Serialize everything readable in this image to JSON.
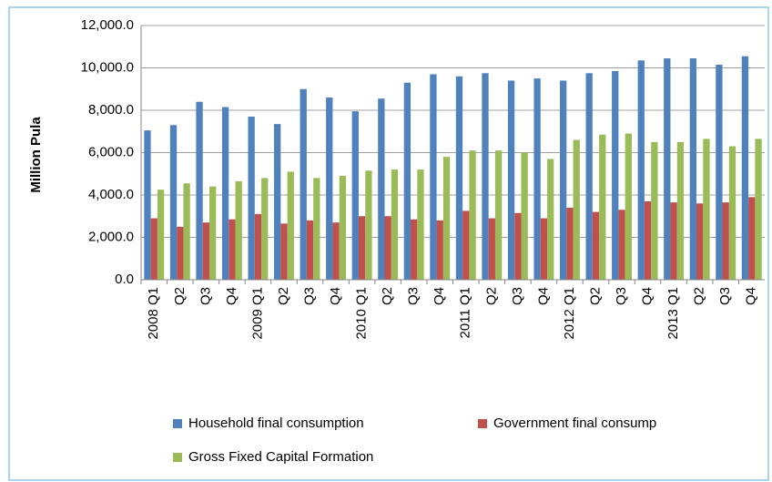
{
  "chart_data": {
    "type": "bar",
    "y_label": "Million Pula",
    "categories": [
      "2008 Q1",
      "Q2",
      "Q3",
      "Q4",
      "2009 Q1",
      "Q2",
      "Q3",
      "Q4",
      "2010 Q1",
      "Q2",
      "Q3",
      "Q4",
      "2011 Q1",
      "Q2",
      "Q3",
      "Q4",
      "2012 Q1",
      "Q2",
      "Q3",
      "Q4",
      "2013 Q1",
      "Q2",
      "Q3",
      "Q4"
    ],
    "series": [
      {
        "name": "Household final consumption",
        "color": "#4f81bd",
        "values": [
          7050,
          7300,
          8400,
          8150,
          7700,
          7350,
          9000,
          8600,
          7950,
          8550,
          9300,
          9700,
          9600,
          9750,
          9400,
          9500,
          9400,
          9750,
          9850,
          10350,
          10450,
          10450,
          10150,
          10550
        ]
      },
      {
        "name": "Government final consump",
        "color": "#c0504d",
        "values": [
          2900,
          2500,
          2700,
          2850,
          3100,
          2650,
          2800,
          2700,
          3000,
          3000,
          2850,
          2800,
          3250,
          2900,
          3150,
          2900,
          3400,
          3200,
          3300,
          3700,
          3650,
          3600,
          3650,
          3900
        ]
      },
      {
        "name": "Gross Fixed Capital Formation",
        "color": "#9bbb59",
        "values": [
          4250,
          4550,
          4400,
          4650,
          4800,
          5100,
          4800,
          4900,
          5150,
          5200,
          5200,
          5800,
          6100,
          6100,
          6000,
          5700,
          6600,
          6850,
          6900,
          6500,
          6500,
          6650,
          6300,
          6650
        ]
      }
    ],
    "ylim": [
      0,
      12000
    ],
    "yticks": [
      {
        "value": 0,
        "label": "0.0"
      },
      {
        "value": 2000,
        "label": "2,000.0"
      },
      {
        "value": 4000,
        "label": "4,000.0"
      },
      {
        "value": 6000,
        "label": "6,000.0"
      },
      {
        "value": 8000,
        "label": "8,000.0"
      },
      {
        "value": 10000,
        "label": "10,000.0"
      },
      {
        "value": 12000,
        "label": "12,000.0"
      }
    ],
    "grid": true
  }
}
